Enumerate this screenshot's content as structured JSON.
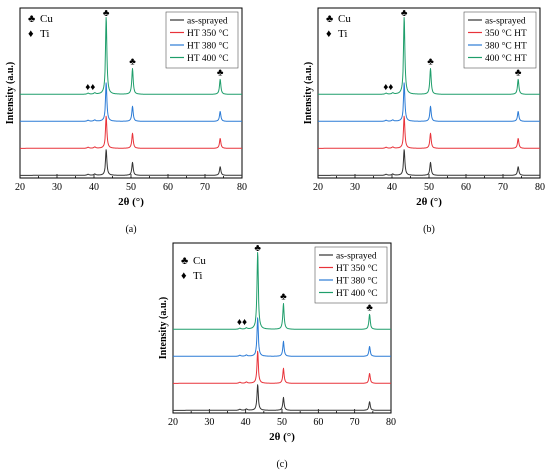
{
  "figure": {
    "panel_labels": [
      "(a)",
      "(b)",
      "(c)"
    ]
  },
  "phase_legend": [
    {
      "symbol": "♣",
      "label": "Cu"
    },
    {
      "symbol": "♦",
      "label": "Ti"
    }
  ],
  "colors": {
    "as_sprayed": "#333333",
    "ht350": "#e8333a",
    "ht380": "#2b7bd6",
    "ht400": "#1f9e6b"
  },
  "chart_data": [
    {
      "type": "line",
      "panel": "(a)",
      "xlabel": "2θ (°)",
      "ylabel": "Intensity (a.u.)",
      "xlim": [
        20,
        80
      ],
      "xticks": [
        20,
        30,
        40,
        50,
        60,
        70,
        80
      ],
      "series": [
        {
          "name": "as-sprayed",
          "peaks": [
            [
              43.3,
              6.0
            ],
            [
              50.4,
              3.0
            ],
            [
              74.1,
              2.0
            ]
          ]
        },
        {
          "name": "HT 350 °C",
          "peaks": [
            [
              43.3,
              7.5
            ],
            [
              50.4,
              3.5
            ],
            [
              74.1,
              2.3
            ]
          ]
        },
        {
          "name": "HT 380 °C",
          "peaks": [
            [
              43.3,
              9.0
            ],
            [
              50.4,
              3.5
            ],
            [
              74.1,
              2.3
            ]
          ]
        },
        {
          "name": "HT 400 °C",
          "peaks": [
            [
              43.3,
              18.0
            ],
            [
              50.4,
              6.0
            ],
            [
              74.1,
              3.5
            ]
          ]
        }
      ],
      "annotations": [
        {
          "symbol": "♣",
          "x": 43.3
        },
        {
          "symbol": "♣",
          "x": 50.4
        },
        {
          "symbol": "♣",
          "x": 74.1
        },
        {
          "symbol": "♦♦",
          "x": 39.0
        }
      ]
    },
    {
      "type": "line",
      "panel": "(b)",
      "xlabel": "2θ (°)",
      "ylabel": "Intensity (a.u.)",
      "xlim": [
        20,
        80
      ],
      "xticks": [
        20,
        30,
        40,
        50,
        60,
        70,
        80
      ],
      "series": [
        {
          "name": "as-sprayed",
          "peaks": [
            [
              43.3,
              6.0
            ],
            [
              50.4,
              3.0
            ],
            [
              74.1,
              2.0
            ]
          ]
        },
        {
          "name": "350 °C HT",
          "peaks": [
            [
              43.3,
              7.5
            ],
            [
              50.4,
              3.5
            ],
            [
              74.1,
              2.3
            ]
          ]
        },
        {
          "name": "380 °C HT",
          "peaks": [
            [
              43.3,
              9.0
            ],
            [
              50.4,
              3.5
            ],
            [
              74.1,
              2.3
            ]
          ]
        },
        {
          "name": "400 °C HT",
          "peaks": [
            [
              43.3,
              18.0
            ],
            [
              50.4,
              6.0
            ],
            [
              74.1,
              3.5
            ]
          ]
        }
      ],
      "annotations": [
        {
          "symbol": "♣",
          "x": 43.3
        },
        {
          "symbol": "♣",
          "x": 50.4
        },
        {
          "symbol": "♣",
          "x": 74.1
        },
        {
          "symbol": "♦♦",
          "x": 39.0
        }
      ]
    },
    {
      "type": "line",
      "panel": "(c)",
      "xlabel": "2θ (°)",
      "ylabel": "Intensity (a.u.)",
      "xlim": [
        20,
        80
      ],
      "xticks": [
        20,
        30,
        40,
        50,
        60,
        70,
        80
      ],
      "series": [
        {
          "name": "as-sprayed",
          "peaks": [
            [
              43.3,
              6.0
            ],
            [
              50.4,
              3.0
            ],
            [
              74.1,
              2.0
            ]
          ]
        },
        {
          "name": "HT 350 °C",
          "peaks": [
            [
              43.3,
              7.5
            ],
            [
              50.4,
              3.5
            ],
            [
              74.1,
              2.3
            ]
          ]
        },
        {
          "name": "HT 380 °C",
          "peaks": [
            [
              43.3,
              9.0
            ],
            [
              50.4,
              3.5
            ],
            [
              74.1,
              2.3
            ]
          ]
        },
        {
          "name": "HT 400 °C",
          "peaks": [
            [
              43.3,
              18.0
            ],
            [
              50.4,
              6.0
            ],
            [
              74.1,
              3.5
            ]
          ]
        }
      ],
      "annotations": [
        {
          "symbol": "♣",
          "x": 43.3
        },
        {
          "symbol": "♣",
          "x": 50.4
        },
        {
          "symbol": "♣",
          "x": 74.1
        },
        {
          "symbol": "♦♦",
          "x": 39.0
        }
      ]
    }
  ]
}
